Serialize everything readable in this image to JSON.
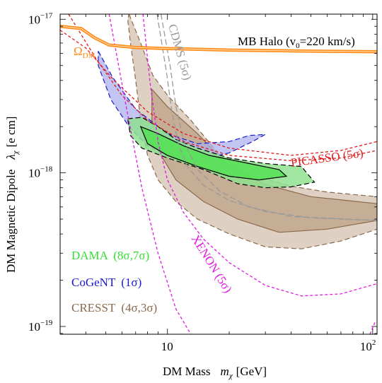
{
  "chart_data": {
    "type": "area",
    "xlabel": "DM Mass",
    "xlabel_symbol": "m",
    "xlabel_sub": "χ",
    "xlabel_unit": "[GeV]",
    "ylabel": "DM Magnetic Dipole",
    "ylabel_symbol": "λ",
    "ylabel_sub": "χ",
    "ylabel_unit": "[e cm]",
    "x_scale": "log",
    "y_scale": "log",
    "xlim": [
      3,
      105
    ],
    "ylim": [
      8.9e-20,
      1.08e-17
    ],
    "x_ticks": [
      {
        "value": 10,
        "label": "10"
      },
      {
        "value": 100,
        "label": "10",
        "sup": "2"
      }
    ],
    "y_ticks": [
      {
        "value": 1e-19,
        "label": "10",
        "sup": "−19"
      },
      {
        "value": 1e-18,
        "label": "10",
        "sup": "−18"
      },
      {
        "value": 1e-17,
        "label": "10",
        "sup": "−17"
      }
    ],
    "halo_note": {
      "text": "MB Halo (v",
      "sub": "0",
      "rest": "=220 km/s)"
    },
    "legend": [
      {
        "label": "DAMA",
        "detail": "(8σ,7σ)",
        "color": "#33e033"
      },
      {
        "label": "CoGeNT",
        "detail": "(1σ)",
        "color": "#1a1acc"
      },
      {
        "label": "CRESST",
        "detail": "(4σ,3σ)",
        "color": "#8a6a4a"
      }
    ],
    "series": [
      {
        "name": "Ω",
        "name_sub": "DM",
        "kind": "relic-line",
        "color": "#ff8c1a",
        "points": [
          [
            3.0,
            9e-18
          ],
          [
            3.8,
            8.7e-18
          ],
          [
            4.4,
            7.6e-18
          ],
          [
            5.2,
            6.8e-18
          ],
          [
            7,
            6.55e-18
          ],
          [
            10,
            6.45e-18
          ],
          [
            20,
            6.3e-18
          ],
          [
            50,
            6.2e-18
          ],
          [
            105,
            6.15e-18
          ]
        ]
      },
      {
        "name": "CDMS",
        "detail": "(5σ)",
        "kind": "limit",
        "color": "#999999",
        "points": [
          [
            8.9,
            1.08e-17
          ],
          [
            9.9,
            4.5e-18
          ],
          [
            10.5,
            2.5e-18
          ],
          [
            11.3,
            1.55e-18
          ],
          [
            12.5,
            1.1e-18
          ],
          [
            15,
            8.3e-19
          ],
          [
            20,
            6.6e-19
          ],
          [
            30,
            5.6e-19
          ],
          [
            50,
            5.1e-19
          ],
          [
            105,
            4.9e-19
          ]
        ]
      },
      {
        "name": "CDMS inner",
        "kind": "limit-secondary",
        "color": "#999999",
        "points": [
          [
            9.3,
            1.08e-17
          ],
          [
            10.3,
            5e-18
          ],
          [
            11,
            2.7e-18
          ],
          [
            12,
            1.6e-18
          ],
          [
            14,
            1.05e-18
          ],
          [
            18,
            7.6e-19
          ],
          [
            25,
            6e-19
          ],
          [
            40,
            5.2e-19
          ],
          [
            105,
            4.9e-19
          ]
        ]
      },
      {
        "name": "PICASSO",
        "detail": "(5σ)",
        "kind": "limit",
        "color": "#e01a1a",
        "points": [
          [
            3.3,
            1.08e-17
          ],
          [
            4.5,
            5.5e-18
          ],
          [
            6,
            3.2e-18
          ],
          [
            8,
            2.2e-18
          ],
          [
            12,
            1.6e-18
          ],
          [
            20,
            1.3e-18
          ],
          [
            40,
            1.2e-18
          ],
          [
            70,
            1.25e-18
          ],
          [
            105,
            1.4e-18
          ]
        ]
      },
      {
        "name": "PICASSO inner",
        "kind": "limit-secondary",
        "color": "#e01a1a",
        "points": [
          [
            3.0,
            8.5e-18
          ],
          [
            4,
            6.5e-18
          ],
          [
            5.5,
            4e-18
          ],
          [
            8,
            2.5e-18
          ],
          [
            12,
            1.8e-18
          ],
          [
            20,
            1.45e-18
          ],
          [
            40,
            1.3e-18
          ],
          [
            70,
            1.4e-18
          ],
          [
            105,
            1.6e-18
          ]
        ]
      },
      {
        "name": "XENON",
        "detail": "(5σ)",
        "kind": "limit",
        "color": "#e01ae0",
        "points": [
          [
            7.6,
            1.08e-17
          ],
          [
            8.2,
            4e-18
          ],
          [
            9,
            1.6e-18
          ],
          [
            10,
            9e-19
          ],
          [
            12,
            5.5e-19
          ],
          [
            15,
            3.7e-19
          ],
          [
            20,
            2.6e-19
          ],
          [
            30,
            1.85e-19
          ],
          [
            45,
            1.58e-19
          ],
          [
            70,
            1.63e-19
          ],
          [
            105,
            1.9e-19
          ]
        ]
      },
      {
        "name": "XENON inner",
        "kind": "limit-secondary",
        "color": "#e01ae0",
        "points": [
          [
            5.2,
            1.08e-17
          ],
          [
            6.2,
            3e-18
          ],
          [
            7.5,
            8e-19
          ],
          [
            9,
            3e-19
          ],
          [
            11,
            1.3e-19
          ],
          [
            13,
            8.9e-20
          ]
        ]
      },
      {
        "name": "XENON right",
        "kind": "limit-secondary",
        "color": "#e01ae0",
        "points": [
          [
            97,
            8.9e-20
          ],
          [
            103,
            1.08e-19
          ]
        ]
      },
      {
        "name": "CRESST 3σ",
        "kind": "region",
        "color": "#8a6a4a",
        "fill": "#d8c8b8",
        "points": [
          [
            6.5,
            1.08e-17
          ],
          [
            7.4,
            7e-18
          ],
          [
            8.5,
            4.3e-18
          ],
          [
            10,
            3.2e-18
          ],
          [
            13,
            2.2e-18
          ],
          [
            18,
            1.3e-18
          ],
          [
            25,
            9.8e-19
          ],
          [
            40,
            8.2e-19
          ],
          [
            60,
            7.5e-19
          ],
          [
            105,
            7e-19
          ],
          [
            105,
            4.3e-19
          ],
          [
            70,
            3.6e-19
          ],
          [
            45,
            3.2e-19
          ],
          [
            30,
            3.3e-19
          ],
          [
            20,
            4e-19
          ],
          [
            14,
            5e-19
          ],
          [
            11,
            6.5e-19
          ],
          [
            9,
            9e-19
          ],
          [
            8,
            1.3e-18
          ],
          [
            7.4,
            2.2e-18
          ],
          [
            7.0,
            4e-18
          ],
          [
            6.6,
            7e-18
          ],
          [
            6.4,
            1e-17
          ]
        ]
      },
      {
        "name": "CRESST 4σ",
        "kind": "region-inner",
        "color": "#8a6a4a",
        "fill": "#c2a78d",
        "points": [
          [
            8.4,
            3.5e-18
          ],
          [
            10,
            2.7e-18
          ],
          [
            14,
            1.8e-18
          ],
          [
            20,
            1.1e-18
          ],
          [
            30,
            8.4e-19
          ],
          [
            50,
            7e-19
          ],
          [
            105,
            6.3e-19
          ],
          [
            105,
            4.9e-19
          ],
          [
            60,
            4.3e-19
          ],
          [
            35,
            4.1e-19
          ],
          [
            22,
            5e-19
          ],
          [
            15,
            6.5e-19
          ],
          [
            11,
            9e-19
          ],
          [
            9,
            1.4e-18
          ],
          [
            8.4,
            2.2e-18
          ]
        ]
      },
      {
        "name": "CoGeNT",
        "kind": "region",
        "color": "#1a1acc",
        "fill": "#aeb0ec",
        "points": [
          [
            4.6,
            6.2e-18
          ],
          [
            5.4,
            4.2e-18
          ],
          [
            7,
            2.6e-18
          ],
          [
            10,
            1.8e-18
          ],
          [
            14,
            1.55e-18
          ],
          [
            20,
            1.6e-18
          ],
          [
            25,
            1.75e-18
          ],
          [
            30,
            1.78e-18
          ],
          [
            26,
            1.6e-18
          ],
          [
            20,
            1.35e-18
          ],
          [
            14,
            1.2e-18
          ],
          [
            10,
            1.3e-18
          ],
          [
            8,
            1.5e-18
          ],
          [
            6.5,
            2e-18
          ],
          [
            5.3,
            3e-18
          ],
          [
            4.6,
            5e-18
          ]
        ]
      },
      {
        "name": "DAMA 7σ",
        "kind": "region",
        "color": "#000000",
        "fill": "#8fe08f",
        "points": [
          [
            6.4,
            2.25e-18
          ],
          [
            7.5,
            2.3e-18
          ],
          [
            9,
            2e-18
          ],
          [
            11,
            1.65e-18
          ],
          [
            14,
            1.45e-18
          ],
          [
            20,
            1.25e-18
          ],
          [
            30,
            1.15e-18
          ],
          [
            45,
            1.1e-18
          ],
          [
            52,
            8.7e-19
          ],
          [
            40,
            8.1e-19
          ],
          [
            30,
            8e-19
          ],
          [
            22,
            8.5e-19
          ],
          [
            15,
            1.05e-18
          ],
          [
            10,
            1.25e-18
          ],
          [
            7.5,
            1.45e-18
          ],
          [
            6.6,
            1.75e-18
          ]
        ]
      },
      {
        "name": "DAMA 8σ",
        "kind": "region-inner",
        "color": "#000000",
        "fill": "#55e055",
        "points": [
          [
            7.4,
            2e-18
          ],
          [
            9,
            1.8e-18
          ],
          [
            12,
            1.5e-18
          ],
          [
            16,
            1.3e-18
          ],
          [
            25,
            1.15e-18
          ],
          [
            35,
            1.05e-18
          ],
          [
            38,
            9.5e-19
          ],
          [
            28,
            9e-19
          ],
          [
            20,
            9.5e-19
          ],
          [
            14,
            1.1e-18
          ],
          [
            10,
            1.3e-18
          ],
          [
            8,
            1.55e-18
          ]
        ]
      }
    ]
  }
}
